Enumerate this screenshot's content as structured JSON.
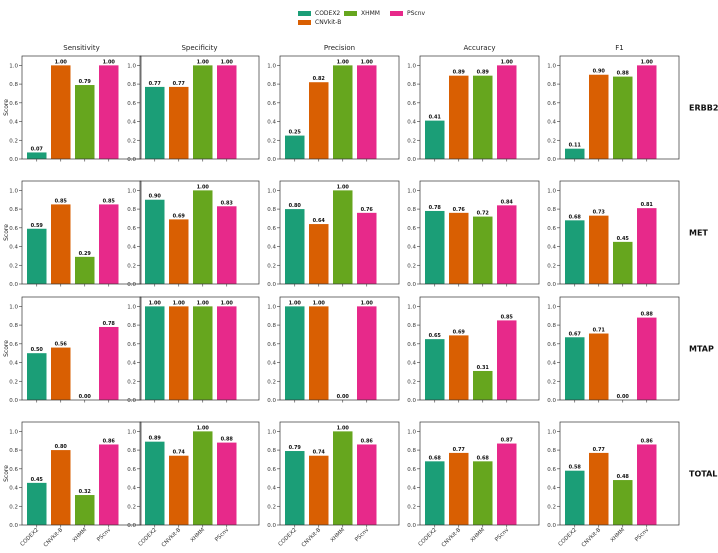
{
  "legend": [
    {
      "name": "CODEX2",
      "color": "#1b9e77"
    },
    {
      "name": "CNVkit-B",
      "color": "#d95f02"
    },
    {
      "name": "XHMM",
      "color": "#66a61e"
    },
    {
      "name": "PScnv",
      "color": "#e7298a"
    }
  ],
  "ylabel": "Score",
  "yticks": [
    "0.0",
    "0.2",
    "0.4",
    "0.6",
    "0.8",
    "1.0"
  ],
  "ylim": [
    0,
    1.1
  ],
  "chart_data": {
    "type": "bar",
    "categories": [
      "CODEX2",
      "CNVkit-B",
      "XHMM",
      "PScnv"
    ],
    "metrics": [
      "Sensitivity",
      "Specificity",
      "Precision",
      "Accuracy",
      "F1"
    ],
    "rows": [
      {
        "gene": "ERBB2",
        "values": [
          [
            0.07,
            1.0,
            0.79,
            1.0
          ],
          [
            0.77,
            0.77,
            1.0,
            1.0
          ],
          [
            0.25,
            0.82,
            1.0,
            1.0
          ],
          [
            0.41,
            0.89,
            0.89,
            1.0
          ],
          [
            0.11,
            0.9,
            0.88,
            1.0
          ]
        ]
      },
      {
        "gene": "MET",
        "values": [
          [
            0.59,
            0.85,
            0.29,
            0.85
          ],
          [
            0.9,
            0.69,
            1.0,
            0.83
          ],
          [
            0.8,
            0.64,
            1.0,
            0.76
          ],
          [
            0.78,
            0.76,
            0.72,
            0.84
          ],
          [
            0.68,
            0.73,
            0.45,
            0.81
          ]
        ]
      },
      {
        "gene": "MTAP",
        "values": [
          [
            0.5,
            0.56,
            0.0,
            0.78
          ],
          [
            1.0,
            1.0,
            1.0,
            1.0
          ],
          [
            1.0,
            1.0,
            0.0,
            1.0
          ],
          [
            0.65,
            0.69,
            0.31,
            0.85
          ],
          [
            0.67,
            0.71,
            0.0,
            0.88
          ]
        ]
      },
      {
        "gene": "TOTAL",
        "values": [
          [
            0.45,
            0.8,
            0.32,
            0.86
          ],
          [
            0.89,
            0.74,
            1.0,
            0.88
          ],
          [
            0.79,
            0.74,
            1.0,
            0.86
          ],
          [
            0.68,
            0.77,
            0.68,
            0.87
          ],
          [
            0.58,
            0.77,
            0.48,
            0.86
          ]
        ]
      }
    ]
  }
}
